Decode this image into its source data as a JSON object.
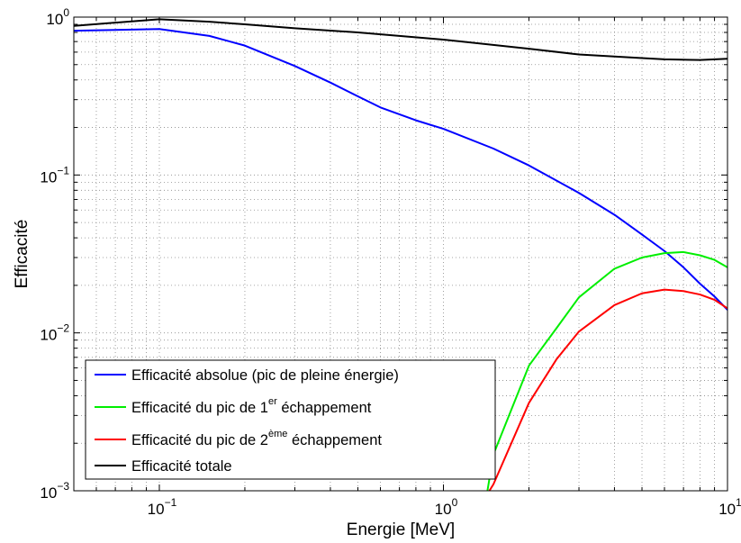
{
  "chart_data": {
    "type": "line",
    "title": "",
    "xlabel": "Energie [MeV]",
    "ylabel": "Efficacité",
    "xscale": "log",
    "yscale": "log",
    "xlim": [
      0.05,
      10
    ],
    "ylim": [
      0.001,
      1
    ],
    "grid": true,
    "legend_position": "bottom-left",
    "x_ticks": [
      {
        "base": "10",
        "exp": "−1"
      },
      {
        "base": "10",
        "exp": "0"
      },
      {
        "base": "10",
        "exp": "1"
      }
    ],
    "y_ticks": [
      {
        "base": "10",
        "exp": "−3"
      },
      {
        "base": "10",
        "exp": "−2"
      },
      {
        "base": "10",
        "exp": "−1"
      },
      {
        "base": "10",
        "exp": "0"
      }
    ],
    "series": [
      {
        "name": "Efficacité absolue (pic de pleine énergie)",
        "legend_main": "Efficacité absolue (pic de pleine énergie)",
        "legend_sup": "",
        "legend_tail": "",
        "color": "#0000ff",
        "x": [
          0.05,
          0.1,
          0.15,
          0.2,
          0.3,
          0.4,
          0.5,
          0.6,
          0.8,
          1.0,
          1.5,
          2.0,
          3.0,
          4.0,
          5.0,
          6.0,
          7.0,
          8.0,
          9.0,
          10.0
        ],
        "y": [
          0.82,
          0.84,
          0.76,
          0.66,
          0.49,
          0.385,
          0.315,
          0.268,
          0.222,
          0.196,
          0.147,
          0.115,
          0.077,
          0.056,
          0.042,
          0.033,
          0.026,
          0.0205,
          0.017,
          0.014
        ]
      },
      {
        "name": "Efficacité du pic de 1er échappement",
        "legend_main": "Efficacité du pic de 1",
        "legend_sup": "er",
        "legend_tail": " échappement",
        "color": "#00ee00",
        "x": [
          1.4,
          1.5,
          2.0,
          2.5,
          3.0,
          4.0,
          5.0,
          6.0,
          7.0,
          8.0,
          9.0,
          10.0
        ],
        "y": [
          0.0008,
          0.0017,
          0.0062,
          0.0107,
          0.0168,
          0.0255,
          0.03,
          0.032,
          0.0325,
          0.031,
          0.029,
          0.026
        ]
      },
      {
        "name": "Efficacité du pic de 2ème échappement",
        "legend_main": "Efficacité du pic de 2",
        "legend_sup": "ème",
        "legend_tail": " échappement",
        "color": "#ff0000",
        "x": [
          1.4,
          1.5,
          2.0,
          2.5,
          3.0,
          4.0,
          5.0,
          6.0,
          7.0,
          8.0,
          9.0,
          10.0
        ],
        "y": [
          0.0009,
          0.0011,
          0.0036,
          0.0068,
          0.0102,
          0.015,
          0.0178,
          0.0188,
          0.0184,
          0.0175,
          0.0162,
          0.0143
        ]
      },
      {
        "name": "Efficacité totale",
        "legend_main": "Efficacité totale",
        "legend_sup": "",
        "legend_tail": "",
        "color": "#000000",
        "x": [
          0.05,
          0.1,
          0.15,
          0.2,
          0.3,
          0.5,
          1.0,
          2.0,
          3.0,
          5.0,
          6.0,
          8.0,
          10.0
        ],
        "y": [
          0.88,
          0.97,
          0.935,
          0.9,
          0.85,
          0.8,
          0.72,
          0.63,
          0.58,
          0.55,
          0.54,
          0.535,
          0.545
        ]
      }
    ]
  }
}
